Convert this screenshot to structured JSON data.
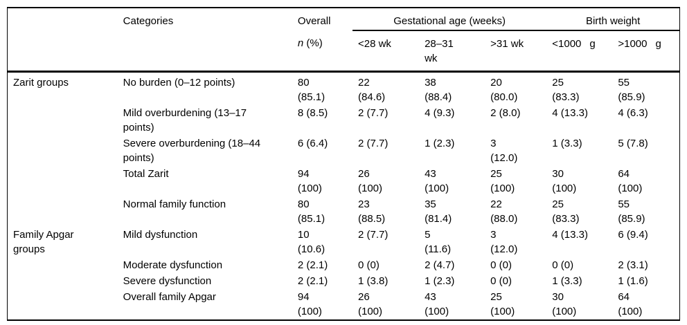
{
  "table": {
    "header": {
      "categories": "Categories",
      "overall_title": "Overall",
      "overall_n": "n",
      "overall_rest": " (%)",
      "group_columns": [
        {
          "label": "Gestational age (weeks)",
          "span": 3
        },
        {
          "label": "Birth weight",
          "span": 2
        }
      ],
      "sub_columns": [
        {
          "label": "<28 wk"
        },
        {
          "label": "28–31\nwk"
        },
        {
          "label": ">31 wk"
        },
        {
          "label": "<1000",
          "unit": "g"
        },
        {
          "label": ">1000",
          "unit": "g"
        }
      ]
    },
    "row_group_labels": [
      "Zarit groups",
      "Family Apgar groups"
    ],
    "rows": [
      {
        "group": "Zarit groups",
        "category": "No burden (0–12 points)",
        "overall": "80\n(85.1)",
        "values": [
          "22\n(84.6)",
          "38\n(88.4)",
          "20\n(80.0)",
          "25\n(83.3)",
          "55\n(85.9)"
        ]
      },
      {
        "group": "",
        "category": "Mild overburdening (13–17\npoints)",
        "overall": "8 (8.5)",
        "values": [
          "2 (7.7)",
          "4 (9.3)",
          "2 (8.0)",
          "4 (13.3)",
          "4 (6.3)"
        ]
      },
      {
        "group": "",
        "category": "Severe overburdening (18–44\npoints)",
        "overall": "6 (6.4)",
        "values": [
          "2 (7.7)",
          "1 (2.3)",
          "3\n(12.0)",
          "1 (3.3)",
          "5 (7.8)"
        ]
      },
      {
        "group": "",
        "category": "Total Zarit",
        "overall": "94\n(100)",
        "values": [
          "26\n(100)",
          "43\n(100)",
          "25\n(100)",
          "30\n(100)",
          "64\n(100)"
        ]
      },
      {
        "group": "",
        "category": "Normal family function",
        "overall": "80\n(85.1)",
        "values": [
          "23\n(88.5)",
          "35\n(81.4)",
          "22\n(88.0)",
          "25\n(83.3)",
          "55\n(85.9)"
        ]
      },
      {
        "group": "Family Apgar\ngroups",
        "category": "Mild dysfunction",
        "overall": "10\n(10.6)",
        "values": [
          "2 (7.7)",
          "5\n(11.6)",
          "3\n(12.0)",
          "4 (13.3)",
          "6 (9.4)"
        ]
      },
      {
        "group": "",
        "category": "Moderate dysfunction",
        "overall": "2 (2.1)",
        "values": [
          "0 (0)",
          "2 (4.7)",
          "0 (0)",
          "0 (0)",
          "2 (3.1)"
        ]
      },
      {
        "group": "",
        "category": "Severe dysfunction",
        "overall": "2 (2.1)",
        "values": [
          "1 (3.8)",
          "1 (2.3)",
          "0 (0)",
          "1 (3.3)",
          "1 (1.6)"
        ]
      },
      {
        "group": "",
        "category": "Overall family Apgar",
        "overall": "94\n(100)",
        "values": [
          "26\n(100)",
          "43\n(100)",
          "25\n(100)",
          "30\n(100)",
          "64\n(100)"
        ]
      }
    ]
  }
}
